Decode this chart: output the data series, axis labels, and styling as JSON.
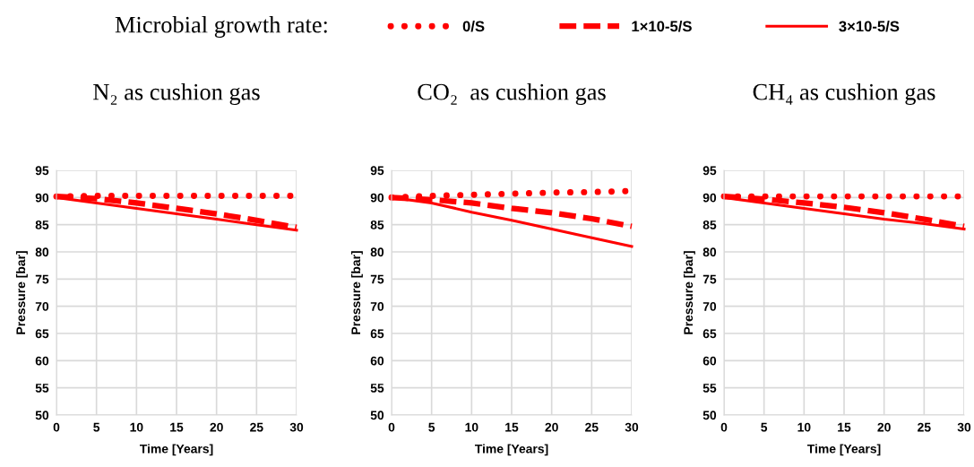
{
  "chart_data": [
    {
      "type": "line",
      "title": "N₂ as cushion gas",
      "xlabel": "Time [Years]",
      "ylabel": "Pressure [bar]",
      "legend_title": "Microbial growth rate:",
      "legend": "top",
      "grid": true,
      "x": [
        0,
        5,
        10,
        15,
        20,
        25,
        30
      ],
      "xlim": [
        0,
        30
      ],
      "xticks": [
        0,
        5,
        10,
        15,
        20,
        25,
        30
      ],
      "ylim": [
        50,
        95
      ],
      "yticks": [
        50,
        55,
        60,
        65,
        70,
        75,
        80,
        85,
        90,
        95
      ],
      "series": [
        {
          "name": "0/S",
          "color": "#ff0000",
          "line_style": "dotted",
          "values": [
            90.2,
            90.3,
            90.3,
            90.3,
            90.3,
            90.3,
            90.3
          ]
        },
        {
          "name": "1×10-5/S",
          "color": "#ff0000",
          "line_style": "dashed",
          "values": [
            90.2,
            89.8,
            89.0,
            88.0,
            87.0,
            85.8,
            84.5
          ]
        },
        {
          "name": "3×10-5/S",
          "color": "#ff0000",
          "line_style": "solid",
          "values": [
            90.0,
            89.0,
            88.0,
            87.0,
            86.0,
            85.0,
            84.0
          ]
        }
      ]
    },
    {
      "type": "line",
      "title": "CO₂  as cushion gas",
      "xlabel": "Time [Years]",
      "ylabel": "Pressure [bar]",
      "grid": true,
      "x": [
        0,
        5,
        10,
        15,
        20,
        25,
        30
      ],
      "xlim": [
        0,
        30
      ],
      "xticks": [
        0,
        5,
        10,
        15,
        20,
        25,
        30
      ],
      "ylim": [
        50,
        95
      ],
      "yticks": [
        50,
        55,
        60,
        65,
        70,
        75,
        80,
        85,
        90,
        95
      ],
      "series": [
        {
          "color": "#ff0000",
          "line_style": "dotted",
          "values": [
            90.0,
            90.3,
            90.5,
            90.7,
            90.9,
            91.0,
            91.2
          ]
        },
        {
          "color": "#ff0000",
          "line_style": "dashed",
          "values": [
            90.0,
            89.6,
            89.0,
            88.0,
            87.2,
            86.1,
            84.7
          ]
        },
        {
          "color": "#ff0000",
          "line_style": "solid",
          "values": [
            90.0,
            89.0,
            87.3,
            85.8,
            84.2,
            82.6,
            81.0
          ]
        }
      ]
    },
    {
      "type": "line",
      "title": "CH₄ as cushion gas",
      "xlabel": "Time [Years]",
      "ylabel": "Pressure [bar]",
      "grid": true,
      "x": [
        0,
        5,
        10,
        15,
        20,
        25,
        30
      ],
      "xlim": [
        0,
        30
      ],
      "xticks": [
        0,
        5,
        10,
        15,
        20,
        25,
        30
      ],
      "ylim": [
        50,
        95
      ],
      "yticks": [
        50,
        55,
        60,
        65,
        70,
        75,
        80,
        85,
        90,
        95
      ],
      "series": [
        {
          "color": "#ff0000",
          "line_style": "dotted",
          "values": [
            90.2,
            90.2,
            90.2,
            90.2,
            90.2,
            90.2,
            90.2
          ]
        },
        {
          "color": "#ff0000",
          "line_style": "dashed",
          "values": [
            90.2,
            89.7,
            89.0,
            88.2,
            87.2,
            86.0,
            84.7
          ]
        },
        {
          "color": "#ff0000",
          "line_style": "solid",
          "values": [
            90.0,
            89.0,
            88.0,
            87.0,
            86.0,
            85.2,
            84.2
          ]
        }
      ]
    }
  ]
}
